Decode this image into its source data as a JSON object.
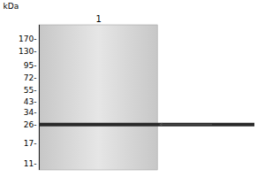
{
  "chart_data": {
    "type": "blot",
    "categories": [
      "1"
    ],
    "values": [
      26
    ],
    "color": "#2a2a2a",
    "ylabel": "kDa",
    "log": "y",
    "ylim": [
      9.5,
      230
    ],
    "yticks": [
      {
        "value": 170,
        "label": "170-"
      },
      {
        "value": 130,
        "label": "130-"
      },
      {
        "value": 95,
        "label": "95-"
      },
      {
        "value": 72,
        "label": "72-"
      },
      {
        "value": 55,
        "label": "55-"
      },
      {
        "value": 43,
        "label": "43-"
      },
      {
        "value": 34,
        "label": "34-"
      },
      {
        "value": 26,
        "label": "26-"
      },
      {
        "value": 17,
        "label": "17-"
      },
      {
        "value": 11,
        "label": "11-"
      }
    ],
    "grid": false
  }
}
